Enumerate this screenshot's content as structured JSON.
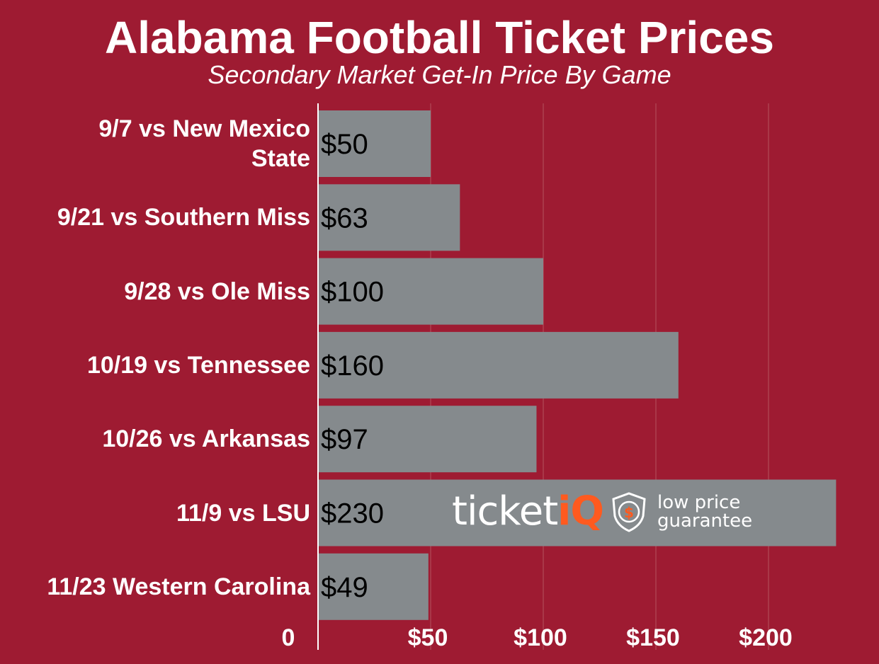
{
  "chart_data": {
    "type": "bar",
    "orientation": "horizontal",
    "title": "Alabama Football Ticket Prices",
    "subtitle": "Secondary Market Get-In Price By Game",
    "categories": [
      [
        "9/7 vs New Mexico",
        "State"
      ],
      [
        "9/21 vs Southern Miss"
      ],
      [
        "9/28 vs Ole Miss"
      ],
      [
        "10/19 vs Tennessee"
      ],
      [
        "10/26 vs Arkansas"
      ],
      [
        "11/9 vs LSU"
      ],
      [
        "11/23 Western Carolina"
      ]
    ],
    "values": [
      50,
      63,
      100,
      160,
      97,
      230,
      49
    ],
    "value_labels": [
      "$50",
      "$63",
      "$100",
      "$160",
      "$97",
      "$230",
      "$49"
    ],
    "xlim": [
      0,
      250
    ],
    "x_ticks": [
      0,
      50,
      100,
      150,
      200
    ],
    "x_tick_labels": [
      "0",
      "$50",
      "$100",
      "$150",
      "$200"
    ],
    "grid": true,
    "colors": {
      "background": "#9e1b32",
      "bar": "#858a8d",
      "text": "#ffffff",
      "value_text": "#000000",
      "accent": "#ff5a1f"
    }
  },
  "watermark": {
    "brand_main": "ticket",
    "brand_accent": "iQ",
    "badge_icon": "shield-dollar-icon",
    "tagline_1": "low price",
    "tagline_2": "guarantee"
  }
}
